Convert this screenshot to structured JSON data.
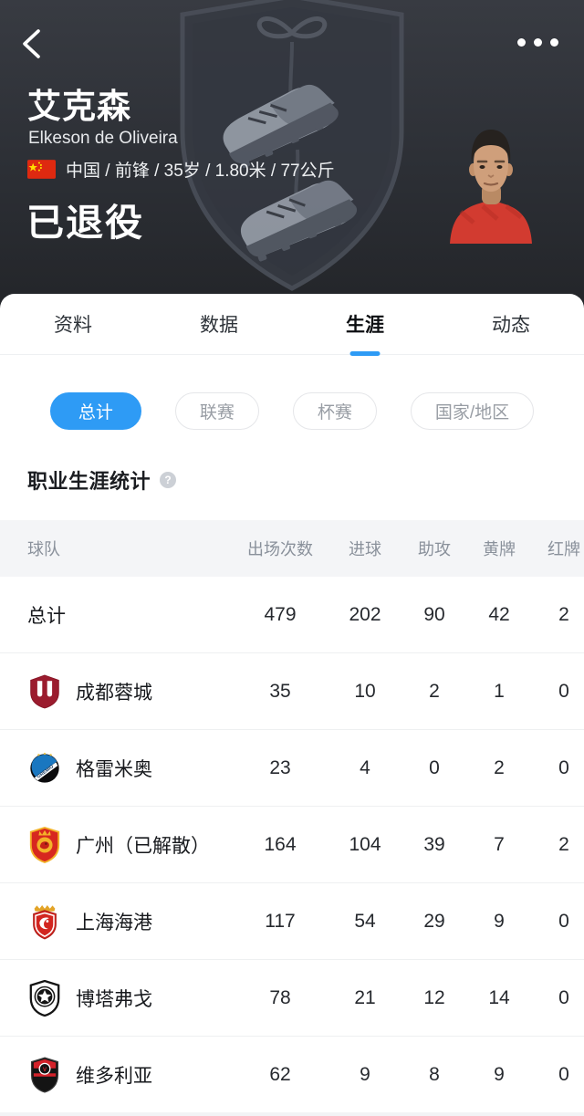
{
  "header": {
    "player_name_cn": "艾克森",
    "player_name_en": "Elkeson de Oliveira",
    "info_line": "中国 / 前锋 / 35岁 / 1.80米 / 77公斤",
    "nationality_flag": "china-flag",
    "status": "已退役"
  },
  "tabs": [
    {
      "slug": "profile",
      "label": "资料",
      "active": false
    },
    {
      "slug": "data",
      "label": "数据",
      "active": false
    },
    {
      "slug": "career",
      "label": "生涯",
      "active": true
    },
    {
      "slug": "news",
      "label": "动态",
      "active": false
    }
  ],
  "filters": [
    {
      "slug": "total",
      "label": "总计",
      "active": true
    },
    {
      "slug": "league",
      "label": "联赛",
      "active": false
    },
    {
      "slug": "cup",
      "label": "杯赛",
      "active": false
    },
    {
      "slug": "national",
      "label": "国家/地区",
      "active": false
    }
  ],
  "section": {
    "title": "职业生涯统计",
    "help_icon": "?"
  },
  "table": {
    "columns": [
      "球队",
      "出场次数",
      "进球",
      "助攻",
      "黄牌",
      "红牌"
    ],
    "rows": [
      {
        "slug": "total",
        "team": "总计",
        "logo": null,
        "values": [
          "479",
          "202",
          "90",
          "42",
          "2"
        ]
      },
      {
        "slug": "chengdu-rongcheng",
        "team": "成都蓉城",
        "logo": "chengdu",
        "values": [
          "35",
          "10",
          "2",
          "1",
          "0"
        ]
      },
      {
        "slug": "gremio",
        "team": "格雷米奥",
        "logo": "gremio",
        "values": [
          "23",
          "4",
          "0",
          "2",
          "0"
        ]
      },
      {
        "slug": "guangzhou",
        "team": "广州（已解散）",
        "logo": "guangzhou",
        "values": [
          "164",
          "104",
          "39",
          "7",
          "2"
        ]
      },
      {
        "slug": "shanghai-port",
        "team": "上海海港",
        "logo": "shanghai",
        "values": [
          "117",
          "54",
          "29",
          "9",
          "0"
        ]
      },
      {
        "slug": "botafogo",
        "team": "博塔弗戈",
        "logo": "botafogo",
        "values": [
          "78",
          "21",
          "12",
          "14",
          "0"
        ]
      },
      {
        "slug": "vitoria",
        "team": "维多利亚",
        "logo": "vitoria",
        "values": [
          "62",
          "9",
          "8",
          "9",
          "0"
        ]
      }
    ]
  },
  "colors": {
    "accent_blue": "#2e9bf5",
    "header_bg_top": "#383b42",
    "header_bg_bottom": "#232529",
    "table_header_bg": "#f4f5f7",
    "flag_red": "#de2910",
    "flag_yellow": "#ffde00"
  }
}
